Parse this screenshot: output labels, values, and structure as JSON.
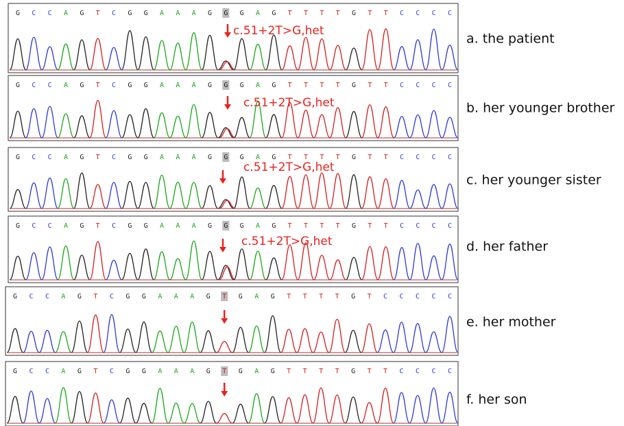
{
  "panels": [
    {
      "bases": [
        "G",
        "C",
        "C",
        "A",
        "G",
        "T",
        "C",
        "G",
        "G",
        "A",
        "A",
        "A",
        "G",
        "G",
        "G",
        "A",
        "G",
        "T",
        "T",
        "T",
        "T",
        "G",
        "T",
        "T",
        "C",
        "C",
        "C",
        "C"
      ],
      "annotation": "c.51+2T>G,het",
      "caption": "a. the patient"
    },
    {
      "bases": [
        "G",
        "C",
        "C",
        "A",
        "G",
        "T",
        "C",
        "G",
        "G",
        "A",
        "A",
        "A",
        "G",
        "G",
        "G",
        "A",
        "G",
        "T",
        "T",
        "T",
        "T",
        "G",
        "T",
        "T",
        "C",
        "C",
        "C",
        "C"
      ],
      "annotation": "c.51+2T>G,het",
      "caption": "b. her younger brother"
    },
    {
      "bases": [
        "G",
        "C",
        "C",
        "A",
        "G",
        "T",
        "C",
        "G",
        "G",
        "A",
        "A",
        "A",
        "G",
        "G",
        "G",
        "A",
        "G",
        "T",
        "T",
        "T",
        "T",
        "G",
        "T",
        "T",
        "C",
        "C",
        "C",
        "C"
      ],
      "annotation": "c.51+2T>G,het",
      "caption": "c. her younger sister"
    },
    {
      "bases": [
        "G",
        "C",
        "C",
        "A",
        "G",
        "T",
        "C",
        "G",
        "G",
        "A",
        "A",
        "A",
        "G",
        "G",
        "G",
        "A",
        "G",
        "T",
        "T",
        "T",
        "T",
        "G",
        "T",
        "T",
        "C",
        "C",
        "C",
        "C"
      ],
      "annotation": "c.51+2T>G,het",
      "caption": "d. her father"
    },
    {
      "bases": [
        "G",
        "C",
        "C",
        "A",
        "G",
        "T",
        "C",
        "G",
        "G",
        "A",
        "A",
        "A",
        "G",
        "T",
        "G",
        "A",
        "G",
        "T",
        "T",
        "T",
        "T",
        "G",
        "T",
        "C",
        "C",
        "C",
        "C",
        "C"
      ],
      "caption": "e. her mother"
    },
    {
      "bases": [
        "G",
        "C",
        "C",
        "A",
        "G",
        "T",
        "C",
        "G",
        "G",
        "A",
        "A",
        "A",
        "G",
        "T",
        "G",
        "A",
        "G",
        "T",
        "T",
        "T",
        "T",
        "G",
        "T",
        "T",
        "C",
        "C",
        "C",
        "C"
      ],
      "caption": "f. her son"
    }
  ]
}
